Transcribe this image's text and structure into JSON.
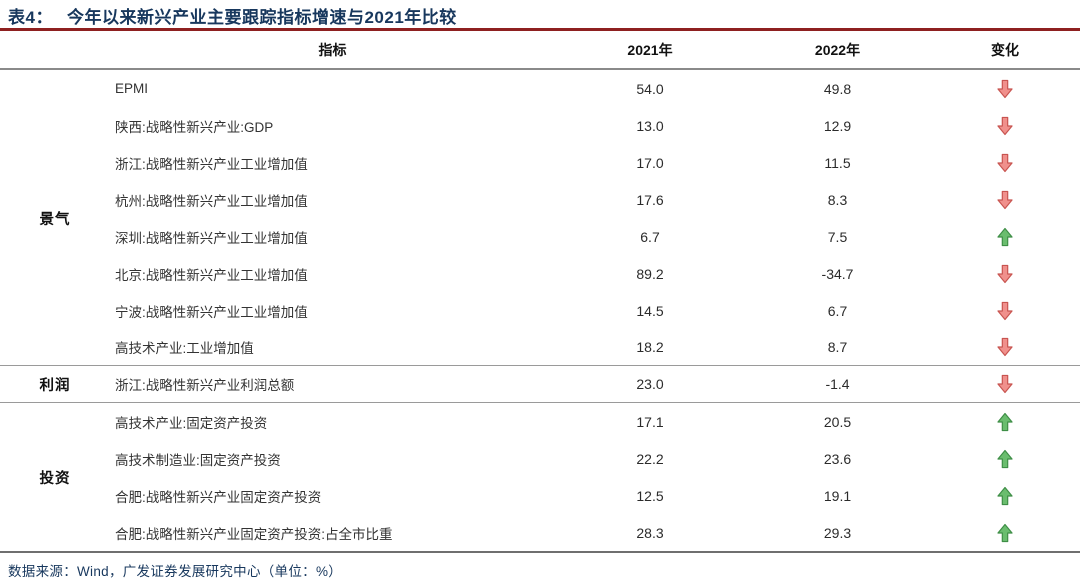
{
  "title": {
    "prefix": "表4：",
    "text": "今年以来新兴产业主要跟踪指标增速与2021年比较"
  },
  "table": {
    "headers": {
      "indicator": "指标",
      "y2021": "2021年",
      "y2022": "2022年",
      "change": "变化"
    },
    "groups": [
      {
        "label": "景气",
        "rows": [
          {
            "indicator": "EPMI",
            "y2021": "54.0",
            "y2022": "49.8",
            "change": "down"
          },
          {
            "indicator": "陕西:战略性新兴产业:GDP",
            "y2021": "13.0",
            "y2022": "12.9",
            "change": "down"
          },
          {
            "indicator": "浙江:战略性新兴产业工业增加值",
            "y2021": "17.0",
            "y2022": "11.5",
            "change": "down"
          },
          {
            "indicator": "杭州:战略性新兴产业工业增加值",
            "y2021": "17.6",
            "y2022": "8.3",
            "change": "down"
          },
          {
            "indicator": "深圳:战略性新兴产业工业增加值",
            "y2021": "6.7",
            "y2022": "7.5",
            "change": "up"
          },
          {
            "indicator": "北京:战略性新兴产业工业增加值",
            "y2021": "89.2",
            "y2022": "-34.7",
            "change": "down"
          },
          {
            "indicator": "宁波:战略性新兴产业工业增加值",
            "y2021": "14.5",
            "y2022": "6.7",
            "change": "down"
          },
          {
            "indicator": "高技术产业:工业增加值",
            "y2021": "18.2",
            "y2022": "8.7",
            "change": "down"
          }
        ]
      },
      {
        "label": "利润",
        "rows": [
          {
            "indicator": "浙江:战略性新兴产业利润总额",
            "y2021": "23.0",
            "y2022": "-1.4",
            "change": "down"
          }
        ]
      },
      {
        "label": "投资",
        "rows": [
          {
            "indicator": "高技术产业:固定资产投资",
            "y2021": "17.1",
            "y2022": "20.5",
            "change": "up"
          },
          {
            "indicator": "高技术制造业:固定资产投资",
            "y2021": "22.2",
            "y2022": "23.6",
            "change": "up"
          },
          {
            "indicator": "合肥:战略性新兴产业固定资产投资",
            "y2021": "12.5",
            "y2022": "19.1",
            "change": "up"
          },
          {
            "indicator": "合肥:战略性新兴产业固定资产投资:占全市比重",
            "y2021": "28.3",
            "y2022": "29.3",
            "change": "up"
          }
        ]
      }
    ]
  },
  "footer": {
    "source": "数据来源：Wind，广发证券发展研究中心（单位：%）"
  },
  "colors": {
    "title_navy": "#17375d",
    "title_rule_red": "#8e2020",
    "up_green": "#6abd6e",
    "down_red": "#f0908c"
  },
  "icons": {
    "up": "up-arrow-icon",
    "down": "down-arrow-icon"
  }
}
